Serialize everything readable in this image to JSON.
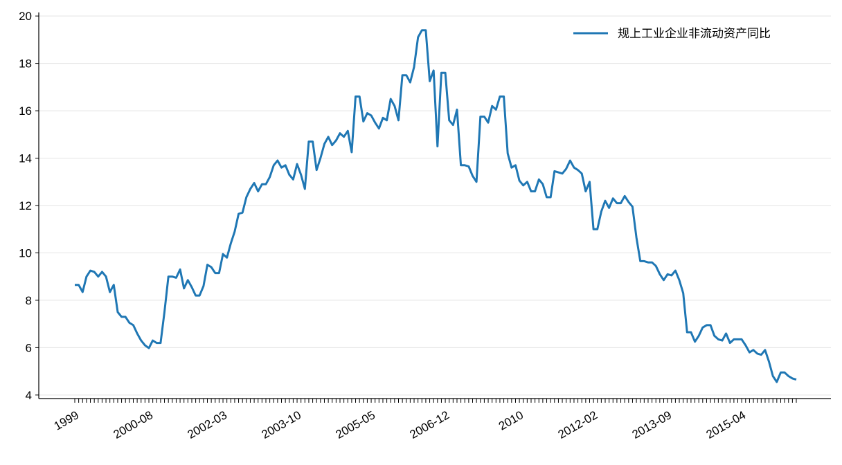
{
  "chart_data": {
    "type": "line",
    "categories": [
      "1999",
      null,
      null,
      null,
      null,
      null,
      null,
      null,
      null,
      null,
      null,
      null,
      null,
      null,
      null,
      null,
      null,
      null,
      null,
      "2000-08",
      null,
      null,
      null,
      null,
      null,
      null,
      null,
      null,
      null,
      null,
      null,
      null,
      null,
      null,
      null,
      null,
      null,
      null,
      "2002-03",
      null,
      null,
      null,
      null,
      null,
      null,
      null,
      null,
      null,
      null,
      null,
      null,
      null,
      null,
      null,
      null,
      null,
      null,
      "2003-10",
      null,
      null,
      null,
      null,
      null,
      null,
      null,
      null,
      null,
      null,
      null,
      null,
      null,
      null,
      null,
      null,
      null,
      null,
      "2005-05",
      null,
      null,
      null,
      null,
      null,
      null,
      null,
      null,
      null,
      null,
      null,
      null,
      null,
      null,
      null,
      null,
      null,
      null,
      "2006-12",
      null,
      null,
      null,
      null,
      null,
      null,
      null,
      null,
      null,
      null,
      null,
      null,
      null,
      null,
      null,
      null,
      null,
      null,
      "2010",
      null,
      null,
      null,
      null,
      null,
      null,
      null,
      null,
      null,
      null,
      null,
      null,
      null,
      null,
      null,
      null,
      null,
      null,
      "2012-02",
      null,
      null,
      null,
      null,
      null,
      null,
      null,
      null,
      null,
      null,
      null,
      null,
      null,
      null,
      null,
      null,
      null,
      null,
      "2013-09",
      null,
      null,
      null,
      null,
      null,
      null,
      null,
      null,
      null,
      null,
      null,
      null,
      null,
      null,
      null,
      null,
      null,
      null,
      "2015-04",
      null,
      null,
      null,
      null,
      null,
      null,
      null,
      null,
      null,
      null,
      null,
      null,
      null,
      null
    ],
    "series": [
      {
        "name": "规上工业企业非流动资产同比",
        "color": "#1f77b4",
        "values": [
          8.65,
          8.65,
          8.35,
          9.0,
          9.25,
          9.2,
          9.0,
          9.2,
          9.0,
          8.35,
          8.65,
          7.5,
          7.3,
          7.3,
          7.05,
          6.95,
          6.6,
          6.3,
          6.1,
          5.98,
          6.3,
          6.2,
          6.2,
          7.5,
          9.0,
          9.0,
          8.95,
          9.3,
          8.5,
          8.85,
          8.55,
          8.2,
          8.2,
          8.6,
          9.5,
          9.4,
          9.15,
          9.15,
          9.95,
          9.8,
          10.4,
          10.9,
          11.65,
          11.7,
          12.35,
          12.7,
          12.95,
          12.6,
          12.9,
          12.9,
          13.2,
          13.7,
          13.9,
          13.6,
          13.7,
          13.3,
          13.1,
          13.75,
          13.3,
          12.7,
          14.7,
          14.7,
          13.5,
          14.0,
          14.6,
          14.9,
          14.55,
          14.75,
          15.05,
          14.9,
          15.15,
          14.25,
          16.6,
          16.6,
          15.55,
          15.9,
          15.8,
          15.5,
          15.25,
          15.7,
          15.6,
          16.5,
          16.2,
          15.6,
          17.5,
          17.5,
          17.2,
          17.85,
          19.1,
          19.4,
          19.4,
          17.25,
          17.7,
          14.5,
          17.6,
          17.6,
          15.6,
          15.4,
          16.05,
          13.7,
          13.7,
          13.65,
          13.25,
          13.0,
          15.75,
          15.75,
          15.5,
          16.2,
          16.05,
          16.6,
          16.6,
          14.2,
          13.6,
          13.7,
          13.05,
          12.85,
          13.0,
          12.6,
          12.6,
          13.1,
          12.9,
          12.35,
          12.35,
          13.45,
          13.4,
          13.35,
          13.55,
          13.9,
          13.6,
          13.5,
          13.35,
          12.6,
          13.0,
          11.0,
          11.0,
          11.75,
          12.2,
          11.9,
          12.3,
          12.1,
          12.1,
          12.4,
          12.15,
          11.95,
          10.65,
          9.65,
          9.65,
          9.6,
          9.6,
          9.45,
          9.1,
          8.85,
          9.1,
          9.05,
          9.25,
          8.85,
          8.3,
          6.65,
          6.65,
          6.25,
          6.5,
          6.85,
          6.95,
          6.95,
          6.5,
          6.35,
          6.3,
          6.6,
          6.2,
          6.35,
          6.35,
          6.35,
          6.1,
          5.8,
          5.9,
          5.75,
          5.7,
          5.9,
          5.4,
          4.8,
          4.55,
          4.95,
          4.95,
          4.8,
          4.7,
          4.65
        ]
      }
    ],
    "ylim": [
      3.85,
      20.15
    ],
    "yticks": [
      4,
      6,
      8,
      10,
      12,
      14,
      16,
      18,
      20
    ],
    "grid": true,
    "legend": "upper right"
  }
}
